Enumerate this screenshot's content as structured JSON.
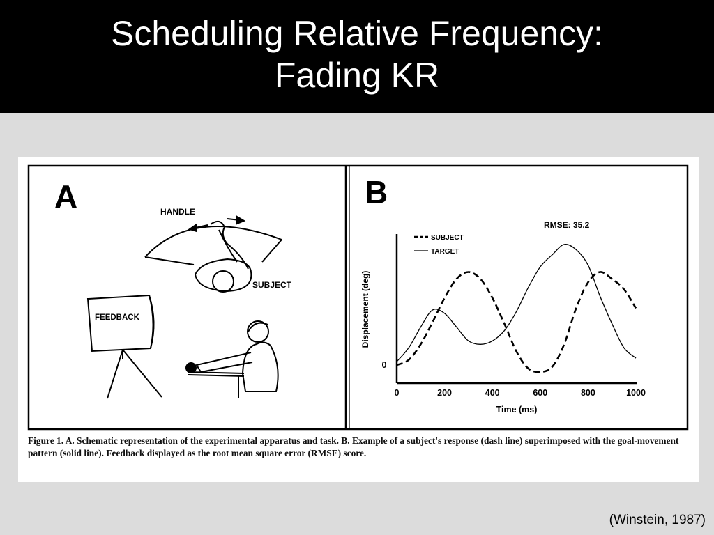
{
  "slide": {
    "title_line1": "Scheduling Relative Frequency:",
    "title_line2": "Fading KR",
    "citation": "(Winstein, 1987)"
  },
  "panel_a": {
    "letter": "A",
    "handle_label": "HANDLE",
    "subject_label": "SUBJECT",
    "feedback_label": "FEEDBACK"
  },
  "panel_b": {
    "letter": "B",
    "rmse_label": "RMSE: 35.2"
  },
  "caption": {
    "figure_label": "Figure 1.",
    "text": " A. Schematic representation of the experimental apparatus and task.  B. Example of a subject's response (dash line) superimposed with the goal-movement pattern (solid line).  Feedback displayed as the root mean square error (RMSE) score."
  },
  "chart_data": {
    "type": "line",
    "title": "",
    "xlabel": "Time (ms)",
    "ylabel": "Displacement (deg)",
    "xlim": [
      0,
      1000
    ],
    "ylim": [
      0,
      72
    ],
    "x_ticks": [
      0,
      200,
      400,
      600,
      800,
      1000
    ],
    "y_ticks": [
      0
    ],
    "legend_position": "top-left",
    "series": [
      {
        "name": "SUBJECT",
        "style": "dashed",
        "x": [
          0,
          50,
          100,
          150,
          200,
          250,
          300,
          350,
          400,
          450,
          500,
          550,
          600,
          650,
          700,
          750,
          800,
          850,
          900,
          950,
          1000
        ],
        "y": [
          0,
          3,
          12,
          25,
          39,
          50,
          54,
          50,
          39,
          24,
          8,
          -2,
          -4,
          -1,
          12,
          33,
          48,
          54,
          50,
          44,
          33
        ]
      },
      {
        "name": "TARGET",
        "style": "solid",
        "x": [
          0,
          50,
          100,
          150,
          200,
          250,
          300,
          350,
          400,
          450,
          500,
          550,
          600,
          650,
          700,
          750,
          800,
          850,
          900,
          950,
          1000
        ],
        "y": [
          2,
          10,
          22,
          32,
          30,
          22,
          14,
          12,
          14,
          20,
          31,
          45,
          57,
          64,
          70,
          67,
          58,
          40,
          24,
          10,
          4
        ]
      }
    ]
  }
}
